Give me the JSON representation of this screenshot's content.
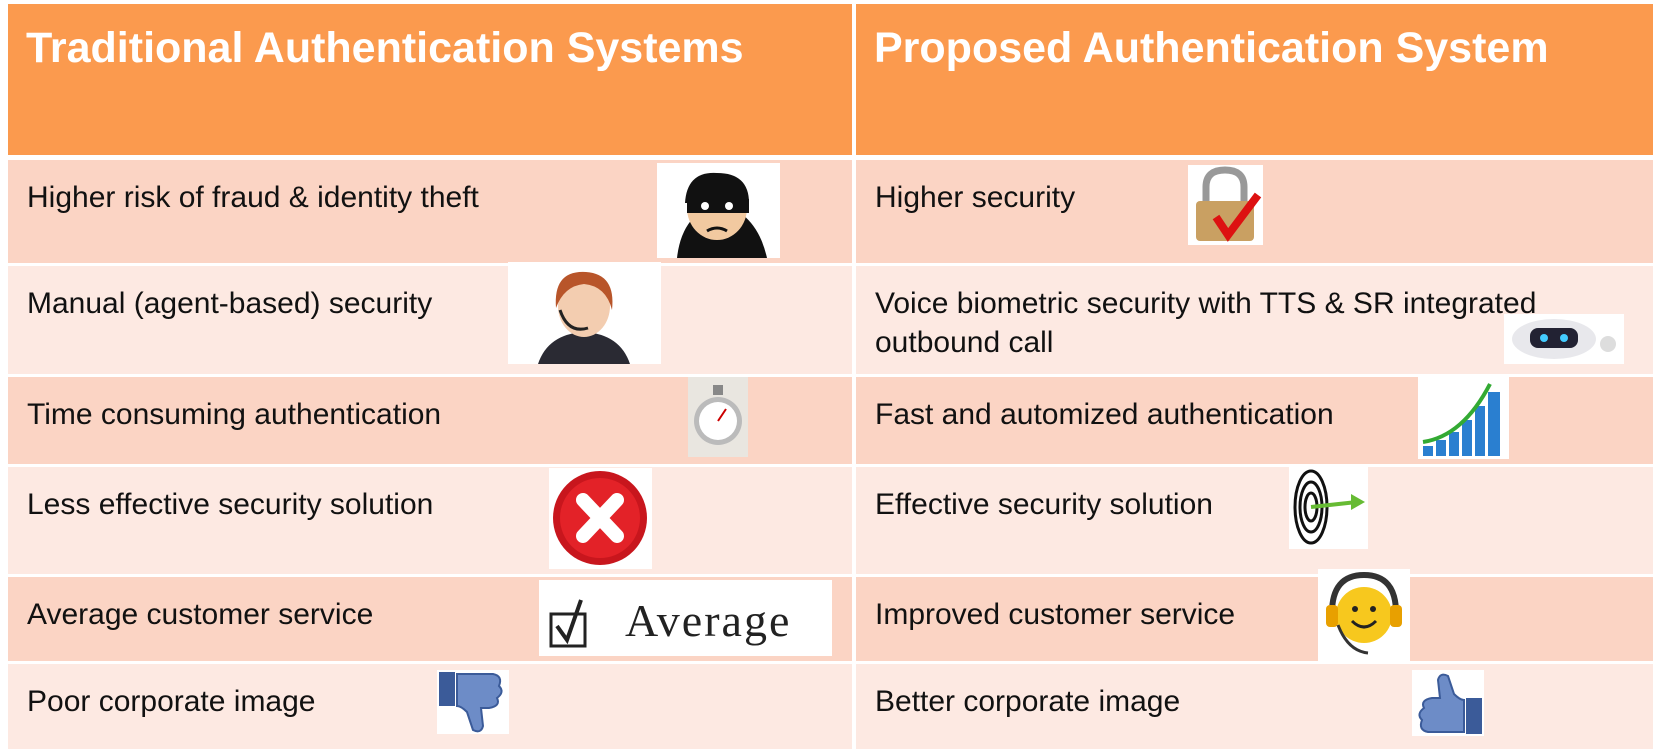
{
  "table": {
    "headers": [
      "Traditional Authentication Systems",
      "Proposed Authentication System"
    ],
    "rows": [
      [
        {
          "text": "Higher risk of fraud & identity theft"
        },
        {
          "text": "Higher security"
        }
      ],
      [
        {
          "text": "Manual (agent-based) security"
        },
        {
          "text": "Voice biometric security with TTS & SR integrated outbound call"
        }
      ],
      [
        {
          "text": "Time consuming authentication"
        },
        {
          "text": "Fast and automized authentication"
        }
      ],
      [
        {
          "text": "Less effective security solution"
        },
        {
          "text": "Effective security solution"
        }
      ],
      [
        {
          "text": "Average customer service",
          "icon_text": "Average"
        },
        {
          "text": "Improved customer service"
        }
      ],
      [
        {
          "text": "Poor corporate image"
        },
        {
          "text": "Better corporate image"
        }
      ]
    ]
  }
}
